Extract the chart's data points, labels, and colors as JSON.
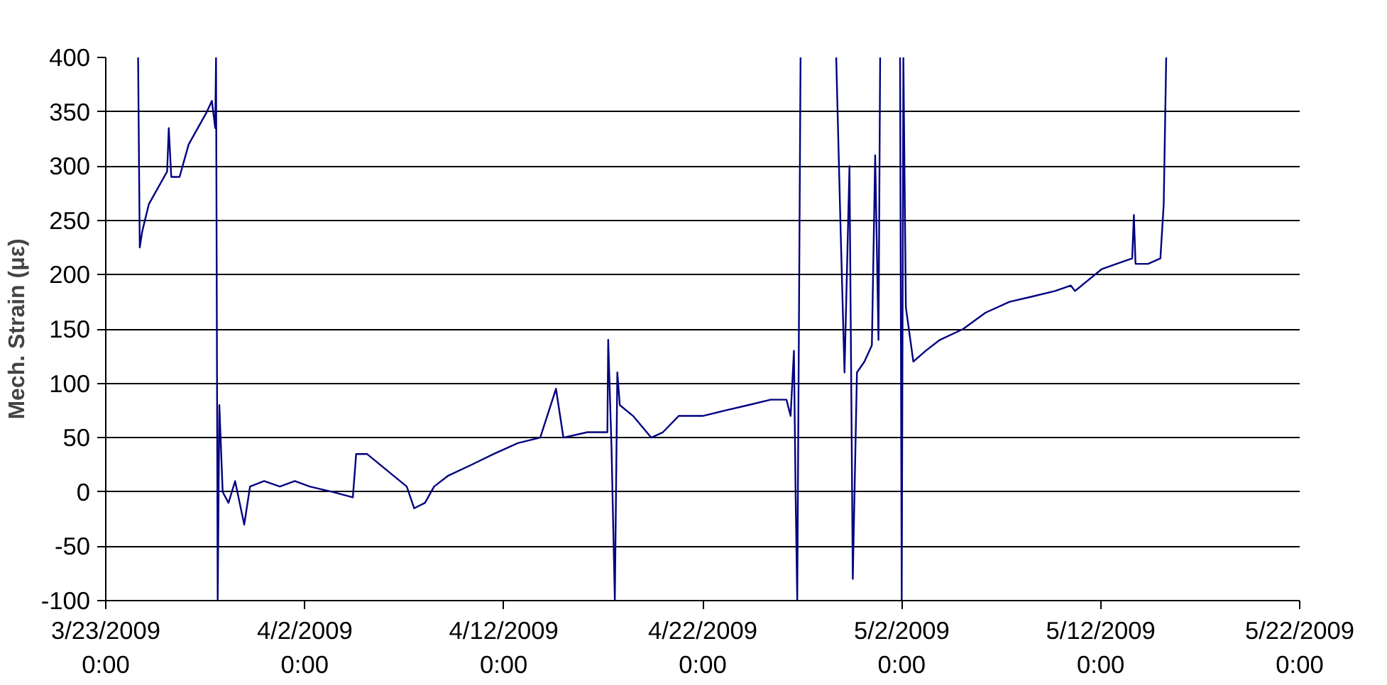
{
  "chart_data": {
    "type": "line",
    "ylabel": "Mech. Strain (με)",
    "x": [
      "2009-03-24T15:00",
      "2009-03-24T17:00",
      "2009-03-24T20:00",
      "2009-03-25T04:00",
      "2009-03-25T15:00",
      "2009-03-26T02:00",
      "2009-03-26T04:00",
      "2009-03-26T07:00",
      "2009-03-26T17:00",
      "2009-03-27T04:00",
      "2009-03-27T15:00",
      "2009-03-28T02:00",
      "2009-03-28T08:00",
      "2009-03-28T12:00",
      "2009-03-28T13:00",
      "2009-03-28T15:00",
      "2009-03-28T17:00",
      "2009-03-28T21:00",
      "2009-03-29T04:00",
      "2009-03-29T12:00",
      "2009-03-29T23:00",
      "2009-03-30T06:00",
      "2009-03-30T23:00",
      "2009-03-31T18:00",
      "2009-04-01T12:00",
      "2009-04-02T06:00",
      "2009-04-03T10:00",
      "2009-04-04T10:00",
      "2009-04-04T14:00",
      "2009-04-05T03:00",
      "2009-04-06T03:00",
      "2009-04-07T03:00",
      "2009-04-07T12:00",
      "2009-04-08T01:00",
      "2009-04-08T12:00",
      "2009-04-09T05:00",
      "2009-04-10T09:00",
      "2009-04-11T12:00",
      "2009-04-12T17:00",
      "2009-04-13T20:00",
      "2009-04-14T15:00",
      "2009-04-15T00:00",
      "2009-04-16T05:00",
      "2009-04-17T05:00",
      "2009-04-17T06:00",
      "2009-04-17T10:00",
      "2009-04-17T14:00",
      "2009-04-17T17:00",
      "2009-04-17T20:00",
      "2009-04-18T12:00",
      "2009-04-19T10:00",
      "2009-04-20T00:00",
      "2009-04-20T19:00",
      "2009-04-22T00:00",
      "2009-04-23T03:00",
      "2009-04-24T07:00",
      "2009-04-25T10:00",
      "2009-04-26T05:00",
      "2009-04-26T10:00",
      "2009-04-26T14:00",
      "2009-04-26T16:00",
      "2009-04-26T18:00",
      "2009-04-26T22:00",
      "2009-04-27T12:00",
      "2009-04-28T17:00",
      "2009-04-28T22:00",
      "2009-04-29T03:00",
      "2009-04-29T09:00",
      "2009-04-29T13:00",
      "2009-04-29T18:00",
      "2009-04-30T03:00",
      "2009-04-30T12:00",
      "2009-04-30T16:00",
      "2009-04-30T20:00",
      "2009-04-30T22:00",
      "2009-05-01T12:00",
      "2009-05-01T22:00",
      "2009-05-02T00:00",
      "2009-05-02T02:00",
      "2009-05-02T05:00",
      "2009-05-02T14:00",
      "2009-05-03T05:00",
      "2009-05-03T22:00",
      "2009-05-05T02:00",
      "2009-05-06T05:00",
      "2009-05-07T10:00",
      "2009-05-08T14:00",
      "2009-05-09T17:00",
      "2009-05-10T12:00",
      "2009-05-10T17:00",
      "2009-05-12T01:00",
      "2009-05-12T19:00",
      "2009-05-13T14:00",
      "2009-05-13T16:00",
      "2009-05-13T18:00",
      "2009-05-14T09:00",
      "2009-05-15T00:00",
      "2009-05-15T04:00",
      "2009-05-15T07:00"
    ],
    "series": [
      {
        "color": "#000080",
        "values": [
          400,
          225,
          240,
          265,
          280,
          295,
          335,
          290,
          290,
          320,
          335,
          350,
          360,
          335,
          400,
          -100,
          80,
          0,
          -10,
          10,
          -30,
          5,
          10,
          5,
          10,
          5,
          0,
          -5,
          35,
          35,
          20,
          5,
          -15,
          -10,
          5,
          15,
          25,
          35,
          45,
          50,
          95,
          50,
          55,
          55,
          140,
          40,
          -100,
          110,
          80,
          70,
          50,
          55,
          70,
          70,
          75,
          80,
          85,
          85,
          70,
          130,
          0,
          -100,
          400,
          null,
          400,
          250,
          110,
          300,
          -80,
          110,
          120,
          135,
          310,
          140,
          400,
          null,
          400,
          -100,
          400,
          170,
          120,
          130,
          140,
          150,
          165,
          175,
          180,
          185,
          190,
          185,
          205,
          210,
          215,
          255,
          210,
          210,
          215,
          265,
          400
        ]
      }
    ],
    "xlim": [
      "2009-03-23",
      "2009-05-22"
    ],
    "xticks": [
      {
        "value": "2009-03-23",
        "label": "3/23/2009\n0:00"
      },
      {
        "value": "2009-04-02",
        "label": "4/2/2009\n0:00"
      },
      {
        "value": "2009-04-12",
        "label": "4/12/2009\n0:00"
      },
      {
        "value": "2009-04-22",
        "label": "4/22/2009\n0:00"
      },
      {
        "value": "2009-05-02",
        "label": "5/2/2009\n0:00"
      },
      {
        "value": "2009-05-12",
        "label": "5/12/2009\n0:00"
      },
      {
        "value": "2009-05-22",
        "label": "5/22/2009\n0:00"
      }
    ],
    "ylim": [
      -100,
      400
    ],
    "yticks": [
      -100,
      -50,
      0,
      50,
      100,
      150,
      200,
      250,
      300,
      350,
      400
    ],
    "grid": "y"
  }
}
